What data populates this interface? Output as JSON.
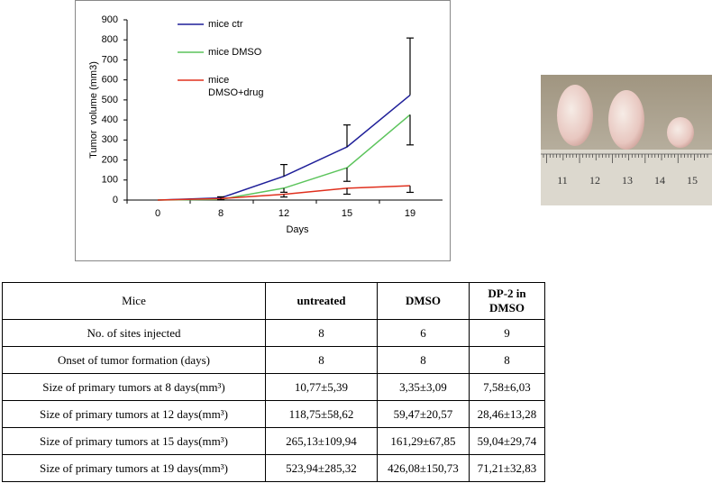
{
  "chart_data": {
    "type": "line",
    "x_label": "Days",
    "y_label": "Tumor  volume (mm3)",
    "categories": [
      "0",
      "8",
      "12",
      "15",
      "19"
    ],
    "series": [
      {
        "name": "mice ctr",
        "color": "#1f1f99",
        "values": [
          0,
          10.77,
          118.75,
          265.13,
          523.94
        ],
        "errors": [
          null,
          5.39,
          58.62,
          109.94,
          285.32
        ],
        "error_direction": "up"
      },
      {
        "name": "mice DMSO",
        "color": "#5cc45c",
        "values": [
          0,
          3.35,
          59.47,
          161.29,
          426.08
        ],
        "errors": [
          null,
          3.09,
          20.57,
          67.85,
          150.73
        ],
        "error_direction": "down"
      },
      {
        "name": "mice DMSO+drug",
        "color": "#e0301e",
        "values": [
          0,
          7.58,
          28.46,
          59.04,
          71.21
        ],
        "errors": [
          null,
          6.03,
          13.28,
          29.74,
          32.83
        ],
        "error_direction": "down"
      }
    ],
    "ylim": [
      0,
      900
    ],
    "yticks": [
      0,
      100,
      200,
      300,
      400,
      500,
      600,
      700,
      800,
      900
    ],
    "grid": false,
    "legend": "top-left"
  },
  "photo": {
    "ruler_labels": [
      "11",
      "12",
      "13",
      "14",
      "15"
    ]
  },
  "table": {
    "header": [
      "Mice",
      "untreated",
      "DMSO",
      "DP-2 in DMSO"
    ],
    "rows": [
      [
        "No. of sites injected",
        "8",
        "6",
        "9"
      ],
      [
        "Onset of tumor formation (days)",
        "8",
        "8",
        "8"
      ],
      [
        "Size of primary tumors  at 8 days(mm³)",
        "10,77±5,39",
        "3,35±3,09",
        "7,58±6,03"
      ],
      [
        "Size of primary tumors  at 12 days(mm³)",
        "118,75±58,62",
        "59,47±20,57",
        "28,46±13,28"
      ],
      [
        "Size of primary tumors  at 15 days(mm³)",
        "265,13±109,94",
        "161,29±67,85",
        "59,04±29,74"
      ],
      [
        "Size of primary tumors  at 19 days(mm³)",
        "523,94±285,32",
        "426,08±150,73",
        "71,21±32,83"
      ]
    ]
  }
}
